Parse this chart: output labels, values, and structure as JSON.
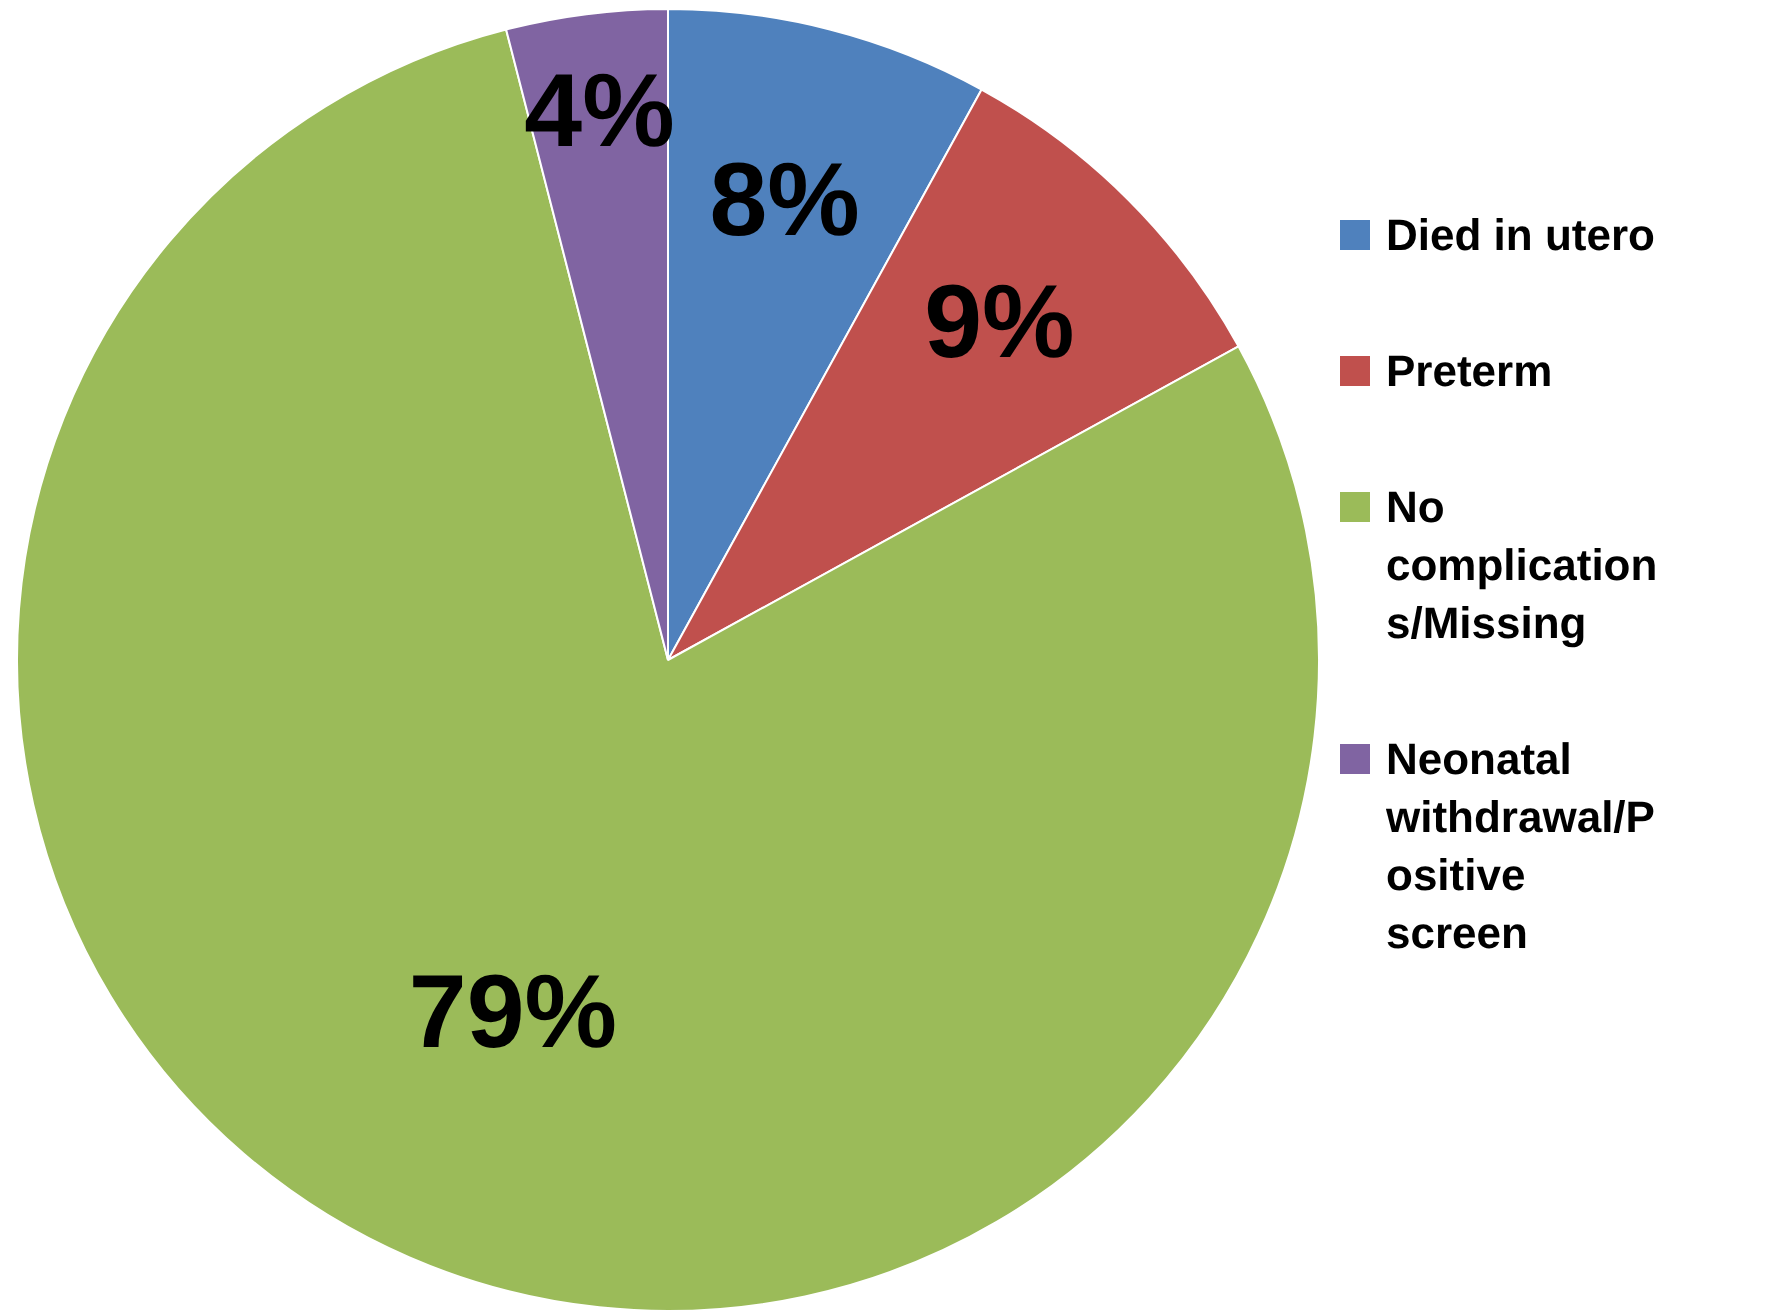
{
  "chart_data": {
    "type": "pie",
    "categories": [
      "Died in utero",
      "Preterm",
      "No complications/Missing",
      "Neonatal withdrawal/Positive screen"
    ],
    "values": [
      8,
      9,
      79,
      4
    ],
    "colors": [
      "#4f81bd",
      "#c0504d",
      "#9bbb59",
      "#8064a2"
    ],
    "value_labels": [
      "8%",
      "9%",
      "79%",
      "4%"
    ],
    "legend": "right"
  }
}
